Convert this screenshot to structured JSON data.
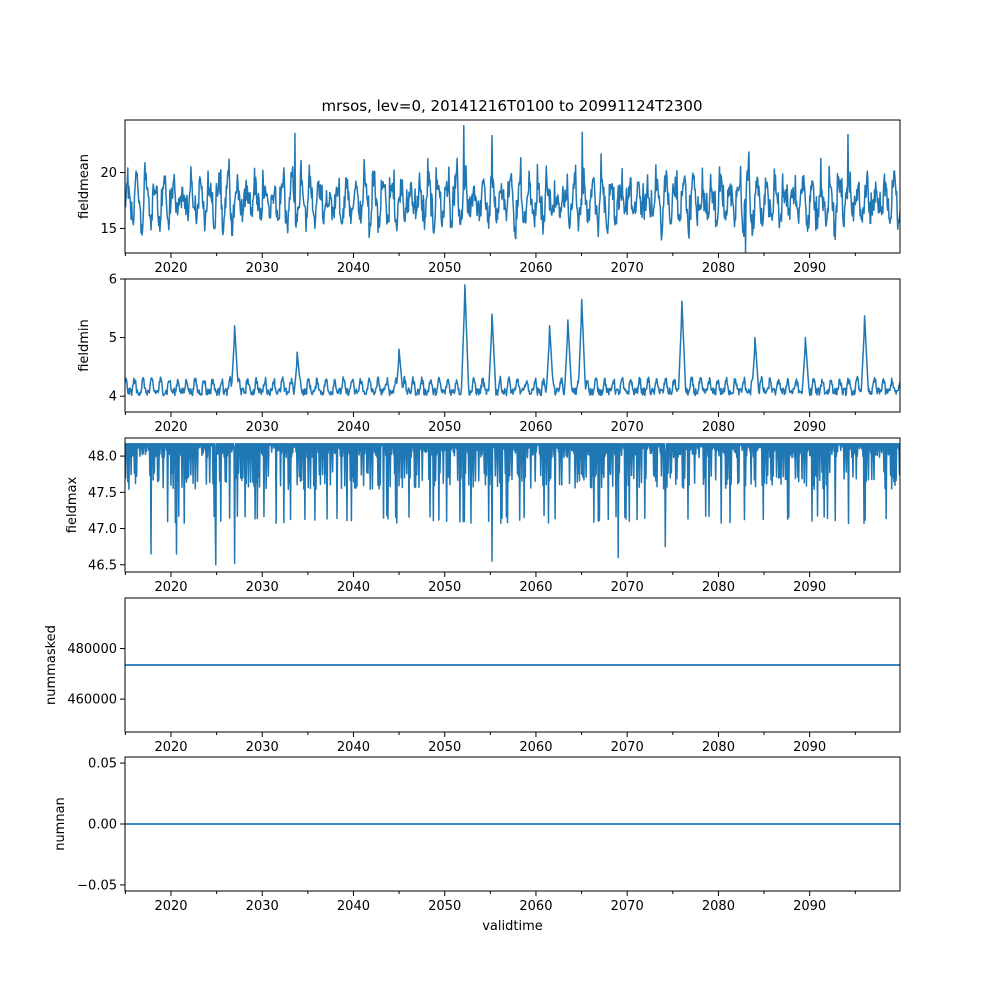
{
  "title": "mrsos, lev=0, 20141216T0100 to 20991124T2300",
  "colors": {
    "series": "#1f77b4"
  },
  "chart_data": [
    {
      "type": "line",
      "ylabel": "fieldmean",
      "xlabel": "",
      "xlim": [
        2014.96,
        2099.9
      ],
      "ylim": [
        12.8,
        24.7
      ],
      "xticks": [
        2020,
        2030,
        2040,
        2050,
        2060,
        2070,
        2080,
        2090
      ],
      "xtick_labels": [
        "2020",
        "2030",
        "2040",
        "2050",
        "2060",
        "2070",
        "2080",
        "2090"
      ],
      "yticks": [
        15,
        20
      ],
      "ytick_labels": [
        "15",
        "20"
      ],
      "grid": false,
      "series": [
        {
          "name": "fieldmean",
          "pattern": "seasonal",
          "x_start": 2014.96,
          "x_end": 2099.9,
          "baseline": 17.2,
          "amplitude": 2.6,
          "noise": 0.9,
          "peaks": [
            [
              2052.1,
              24.2
            ],
            [
              2065.1,
              23.6
            ],
            [
              2083.0,
              12.9
            ],
            [
              2094.2,
              23.4
            ],
            [
              2033.6,
              23.5
            ],
            [
              2055.2,
              23.3
            ]
          ]
        }
      ]
    },
    {
      "type": "line",
      "ylabel": "fieldmin",
      "xlabel": "",
      "xlim": [
        2014.96,
        2099.9
      ],
      "ylim": [
        3.73,
        6.0
      ],
      "xticks": [
        2020,
        2030,
        2040,
        2050,
        2060,
        2070,
        2080,
        2090
      ],
      "xtick_labels": [
        "2020",
        "2030",
        "2040",
        "2050",
        "2060",
        "2070",
        "2080",
        "2090"
      ],
      "yticks": [
        4,
        5,
        6
      ],
      "ytick_labels": [
        "4",
        "5",
        "6"
      ],
      "grid": false,
      "series": [
        {
          "name": "fieldmin",
          "pattern": "spiky-floor",
          "x_start": 2014.96,
          "x_end": 2099.9,
          "baseline": 4.05,
          "amplitude": 0.2,
          "noise": 0.08,
          "peaks": [
            [
              2052.2,
              5.9
            ],
            [
              2027.0,
              5.2
            ],
            [
              2055.2,
              5.4
            ],
            [
              2065.0,
              5.65
            ],
            [
              2076.0,
              5.62
            ],
            [
              2096.0,
              5.37
            ],
            [
              2063.5,
              5.3
            ],
            [
              2061.5,
              5.2
            ],
            [
              2045.0,
              4.8
            ],
            [
              2084.0,
              5.0
            ],
            [
              2089.5,
              5.0
            ],
            [
              2033.8,
              4.75
            ]
          ]
        }
      ]
    },
    {
      "type": "line",
      "ylabel": "fieldmax",
      "xlabel": "",
      "xlim": [
        2014.96,
        2099.9
      ],
      "ylim": [
        46.4,
        48.25
      ],
      "xticks": [
        2020,
        2030,
        2040,
        2050,
        2060,
        2070,
        2080,
        2090
      ],
      "xtick_labels": [
        "2020",
        "2030",
        "2040",
        "2050",
        "2060",
        "2070",
        "2080",
        "2090"
      ],
      "yticks": [
        46.5,
        47.0,
        47.5,
        48.0
      ],
      "ytick_labels": [
        "46.5",
        "47.0",
        "47.5",
        "48.0"
      ],
      "grid": false,
      "series": [
        {
          "name": "fieldmax",
          "pattern": "dips-from-ceiling",
          "x_start": 2014.96,
          "x_end": 2099.9,
          "baseline": 48.17,
          "amplitude": 0.6,
          "noise": 0.1,
          "peaks": [
            [
              2024.9,
              46.5
            ],
            [
              2055.2,
              46.55
            ],
            [
              2027.0,
              46.52
            ],
            [
              2017.8,
              46.65
            ],
            [
              2069.0,
              46.6
            ],
            [
              2020.6,
              46.65
            ],
            [
              2074.2,
              46.75
            ]
          ]
        }
      ]
    },
    {
      "type": "line",
      "ylabel": "nummasked",
      "xlabel": "",
      "xlim": [
        2014.96,
        2099.9
      ],
      "ylim": [
        447000,
        500000
      ],
      "xticks": [
        2020,
        2030,
        2040,
        2050,
        2060,
        2070,
        2080,
        2090
      ],
      "xtick_labels": [
        "2020",
        "2030",
        "2040",
        "2050",
        "2060",
        "2070",
        "2080",
        "2090"
      ],
      "yticks": [
        460000,
        480000
      ],
      "ytick_labels": [
        "460000",
        "480000"
      ],
      "grid": false,
      "series": [
        {
          "name": "nummasked",
          "pattern": "constant",
          "x_start": 2014.96,
          "x_end": 2099.9,
          "value": 473500
        }
      ]
    },
    {
      "type": "line",
      "ylabel": "numnan",
      "xlabel": "validtime",
      "xlim": [
        2014.96,
        2099.9
      ],
      "ylim": [
        -0.055,
        0.055
      ],
      "xticks": [
        2020,
        2030,
        2040,
        2050,
        2060,
        2070,
        2080,
        2090
      ],
      "xtick_labels": [
        "2020",
        "2030",
        "2040",
        "2050",
        "2060",
        "2070",
        "2080",
        "2090"
      ],
      "yticks": [
        -0.05,
        0.0,
        0.05
      ],
      "ytick_labels": [
        "−0.05",
        "0.00",
        "0.05"
      ],
      "grid": false,
      "series": [
        {
          "name": "numnan",
          "pattern": "constant",
          "x_start": 2014.96,
          "x_end": 2099.9,
          "value": 0.0
        }
      ]
    }
  ]
}
